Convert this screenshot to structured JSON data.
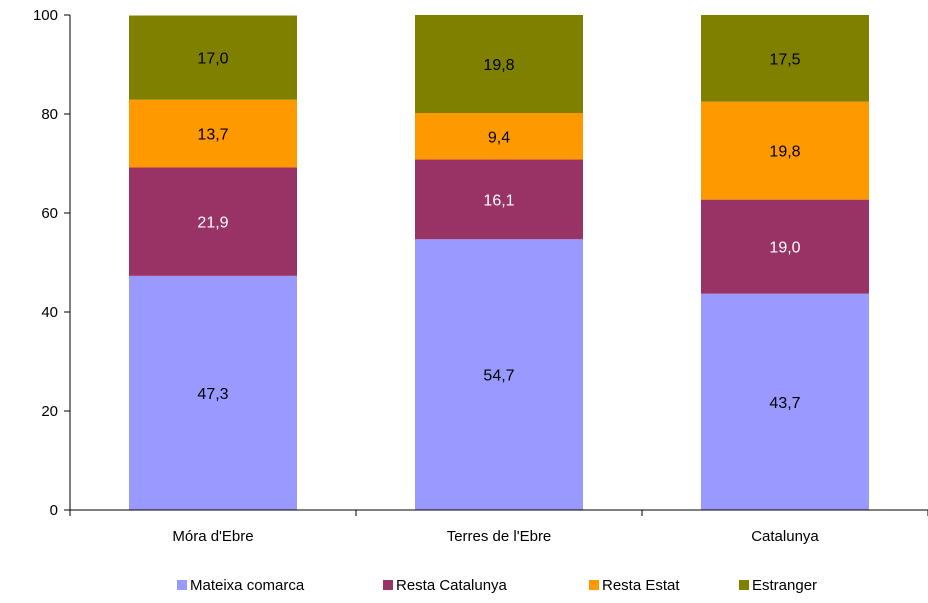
{
  "chart_data": {
    "type": "bar",
    "stacked": true,
    "title": "",
    "xlabel": "",
    "ylabel": "",
    "ylim": [
      0,
      100
    ],
    "yticks": [
      0,
      20,
      40,
      60,
      80,
      100
    ],
    "grid": false,
    "legend_position": "bottom",
    "categories": [
      "Móra d'Ebre",
      "Terres de l'Ebre",
      "Catalunya"
    ],
    "series": [
      {
        "name": "Mateixa comarca",
        "color": "#9999ff",
        "label_color": "#000000",
        "values": [
          47.3,
          54.7,
          43.7
        ],
        "labels": [
          "47,3",
          "54,7",
          "43,7"
        ]
      },
      {
        "name": "Resta Catalunya",
        "color": "#993366",
        "label_color": "#ffffff",
        "values": [
          21.9,
          16.1,
          19.0
        ],
        "labels": [
          "21,9",
          "16,1",
          "19,0"
        ]
      },
      {
        "name": "Resta Estat",
        "color": "#ff9900",
        "label_color": "#000000",
        "values": [
          13.7,
          9.4,
          19.8
        ],
        "labels": [
          "13,7",
          "9,4",
          "19,8"
        ]
      },
      {
        "name": "Estranger",
        "color": "#808000",
        "label_color": "#000000",
        "values": [
          17.0,
          19.8,
          17.5
        ],
        "labels": [
          "17,0",
          "19,8",
          "17,5"
        ]
      }
    ]
  }
}
